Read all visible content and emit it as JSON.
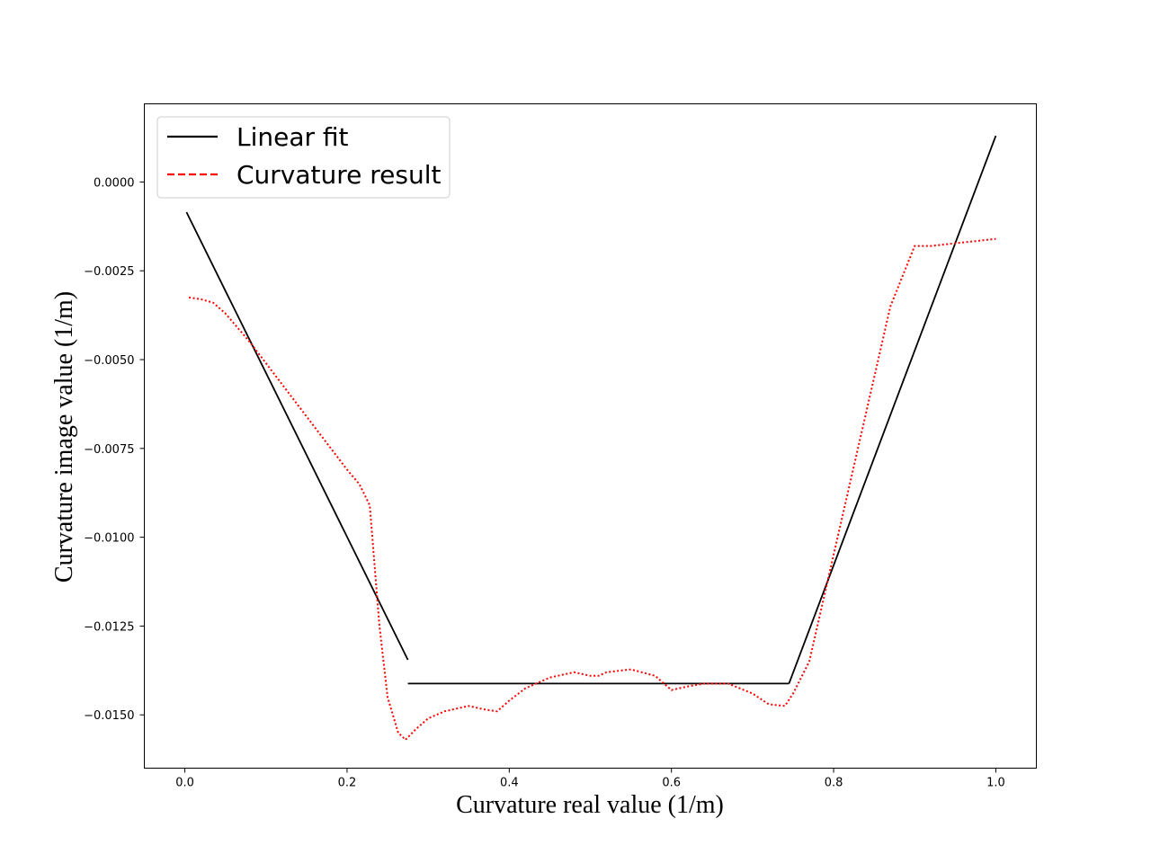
{
  "chart_data": {
    "type": "line",
    "xlabel": "Curvature real value (1/m)",
    "ylabel": "Curvature image value (1/m)",
    "xlim": [
      -0.05,
      1.05
    ],
    "ylim": [
      -0.0165,
      0.0022
    ],
    "xticks": [
      0.0,
      0.2,
      0.4,
      0.6,
      0.8,
      1.0
    ],
    "xtick_labels": [
      "0.0",
      "0.2",
      "0.4",
      "0.6",
      "0.8",
      "1.0"
    ],
    "yticks": [
      0.0,
      -0.0025,
      -0.005,
      -0.0075,
      -0.01,
      -0.0125,
      -0.015
    ],
    "ytick_labels": [
      "0.0000",
      "−0.0025",
      "−0.0050",
      "−0.0075",
      "−0.0100",
      "−0.0125",
      "−0.0150"
    ],
    "legend_position": "top-left",
    "series": [
      {
        "name": "Linear fit",
        "color": "#000000",
        "style": "solid",
        "segments": [
          {
            "x": [
              0.002,
              0.275
            ],
            "y": [
              -0.00085,
              -0.01345
            ]
          },
          {
            "x": [
              0.275,
              0.745
            ],
            "y": [
              -0.01412,
              -0.01412
            ]
          },
          {
            "x": [
              0.745,
              1.0
            ],
            "y": [
              -0.01412,
              0.0013
            ]
          }
        ]
      },
      {
        "name": "Curvature result",
        "color": "#ff0000",
        "style": "dotted",
        "segments": [
          {
            "x": [
              0.005,
              0.02,
              0.035,
              0.05,
              0.08,
              0.12,
              0.16,
              0.2,
              0.215,
              0.228,
              0.24,
              0.25,
              0.263,
              0.272,
              0.285,
              0.3,
              0.32,
              0.35,
              0.37,
              0.385,
              0.4,
              0.42,
              0.45,
              0.48,
              0.5,
              0.51,
              0.52,
              0.55,
              0.58,
              0.6,
              0.62,
              0.64,
              0.67,
              0.7,
              0.72,
              0.74,
              0.75,
              0.77,
              0.8,
              0.83,
              0.87,
              0.9,
              0.92,
              1.0
            ],
            "y": [
              -0.00325,
              -0.0033,
              -0.0034,
              -0.0037,
              -0.0045,
              -0.0057,
              -0.0069,
              -0.0081,
              -0.0085,
              -0.0091,
              -0.0125,
              -0.0145,
              -0.0155,
              -0.0157,
              -0.0154,
              -0.0151,
              -0.0149,
              -0.01475,
              -0.01485,
              -0.0149,
              -0.0146,
              -0.01425,
              -0.01395,
              -0.0138,
              -0.0139,
              -0.0139,
              -0.0138,
              -0.01372,
              -0.0139,
              -0.0143,
              -0.0142,
              -0.01412,
              -0.01412,
              -0.0144,
              -0.0147,
              -0.01475,
              -0.0144,
              -0.0135,
              -0.0105,
              -0.0075,
              -0.0035,
              -0.0018,
              -0.0018,
              -0.0016
            ]
          }
        ]
      }
    ]
  }
}
